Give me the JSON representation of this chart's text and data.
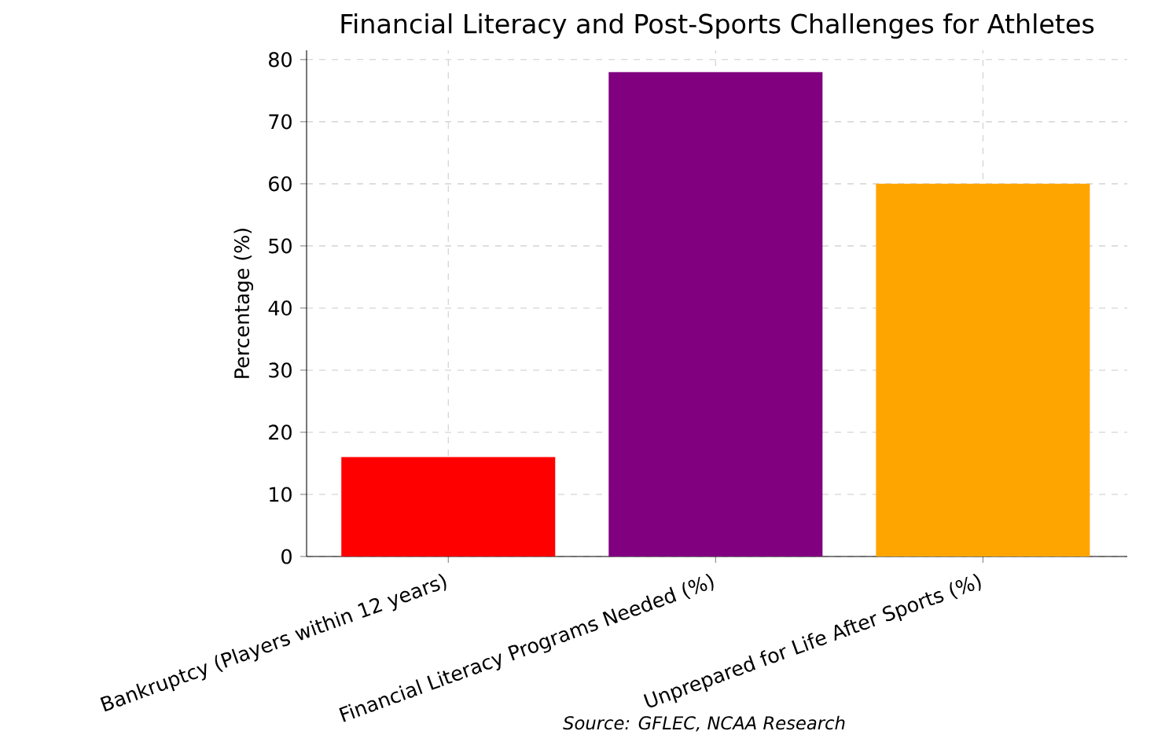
{
  "chart_data": {
    "type": "bar",
    "title": "Financial Literacy and Post-Sports Challenges for Athletes",
    "ylabel": "Percentage (%)",
    "categories": [
      "Bankruptcy (Players within 12 years)",
      "Financial Literacy Programs Needed (%)",
      "Unprepared for Life After Sports (%)"
    ],
    "values": [
      16,
      78,
      60
    ],
    "colors": [
      "#ff0000",
      "#800080",
      "#ffa500"
    ],
    "ylim": [
      0,
      81.5
    ],
    "yticks": [
      0,
      10,
      20,
      30,
      40,
      50,
      60,
      70,
      80
    ],
    "grid": true,
    "annotations": [
      "Source: GFLEC, NCAA Research"
    ]
  }
}
